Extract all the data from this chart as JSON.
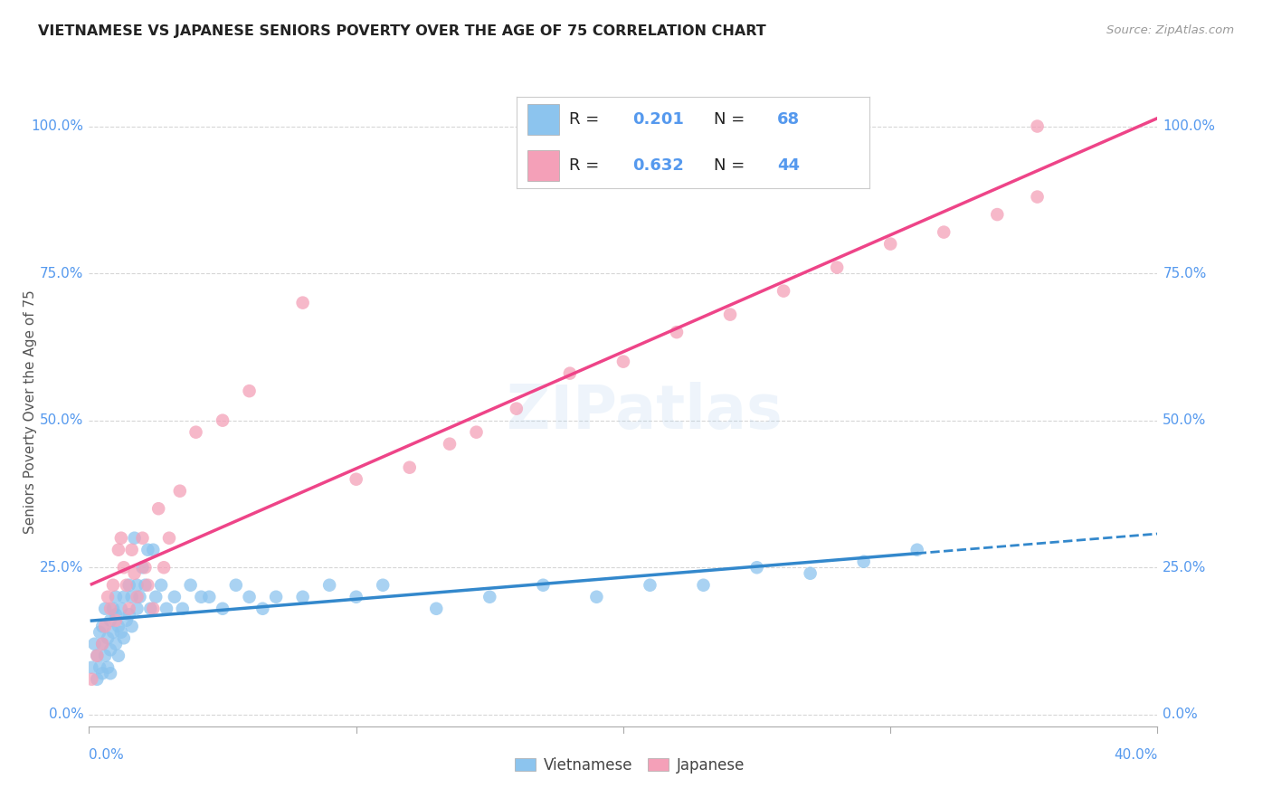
{
  "title": "VIETNAMESE VS JAPANESE SENIORS POVERTY OVER THE AGE OF 75 CORRELATION CHART",
  "source": "Source: ZipAtlas.com",
  "ylabel": "Seniors Poverty Over the Age of 75",
  "xlim": [
    0.0,
    0.4
  ],
  "ylim": [
    -0.02,
    1.05
  ],
  "plot_ylim": [
    0.0,
    1.0
  ],
  "yticks": [
    0.0,
    0.25,
    0.5,
    0.75,
    1.0
  ],
  "ytick_labels": [
    "0.0%",
    "25.0%",
    "50.0%",
    "75.0%",
    "100.0%"
  ],
  "xtick_left": "0.0%",
  "xtick_right": "40.0%",
  "legend_labels": [
    "Vietnamese",
    "Japanese"
  ],
  "r_vietnamese": 0.201,
  "n_vietnamese": 68,
  "r_japanese": 0.632,
  "n_japanese": 44,
  "color_vietnamese": "#8CC4EE",
  "color_japanese": "#F4A0B8",
  "color_trendline_vietnamese": "#3388CC",
  "color_trendline_japanese": "#EE4488",
  "color_axis": "#5599EE",
  "background_color": "#ffffff",
  "grid_color": "#cccccc",
  "watermark": "ZIPatlas",
  "viet_x": [
    0.001,
    0.002,
    0.003,
    0.003,
    0.004,
    0.004,
    0.005,
    0.005,
    0.005,
    0.006,
    0.006,
    0.007,
    0.007,
    0.008,
    0.008,
    0.008,
    0.009,
    0.009,
    0.01,
    0.01,
    0.01,
    0.011,
    0.011,
    0.012,
    0.012,
    0.013,
    0.013,
    0.014,
    0.015,
    0.015,
    0.016,
    0.016,
    0.017,
    0.018,
    0.018,
    0.019,
    0.02,
    0.021,
    0.022,
    0.023,
    0.024,
    0.025,
    0.027,
    0.029,
    0.032,
    0.035,
    0.038,
    0.042,
    0.045,
    0.05,
    0.055,
    0.06,
    0.065,
    0.07,
    0.08,
    0.09,
    0.1,
    0.11,
    0.13,
    0.15,
    0.17,
    0.19,
    0.21,
    0.23,
    0.25,
    0.27,
    0.29,
    0.31
  ],
  "viet_y": [
    0.08,
    0.12,
    0.1,
    0.06,
    0.14,
    0.08,
    0.12,
    0.07,
    0.15,
    0.1,
    0.18,
    0.13,
    0.08,
    0.16,
    0.11,
    0.07,
    0.18,
    0.14,
    0.17,
    0.12,
    0.2,
    0.15,
    0.1,
    0.18,
    0.14,
    0.2,
    0.13,
    0.16,
    0.22,
    0.17,
    0.2,
    0.15,
    0.3,
    0.22,
    0.18,
    0.2,
    0.25,
    0.22,
    0.28,
    0.18,
    0.28,
    0.2,
    0.22,
    0.18,
    0.2,
    0.18,
    0.22,
    0.2,
    0.2,
    0.18,
    0.22,
    0.2,
    0.18,
    0.2,
    0.2,
    0.22,
    0.2,
    0.22,
    0.18,
    0.2,
    0.22,
    0.2,
    0.22,
    0.22,
    0.25,
    0.24,
    0.26,
    0.28
  ],
  "jap_x": [
    0.001,
    0.003,
    0.005,
    0.006,
    0.007,
    0.008,
    0.009,
    0.01,
    0.011,
    0.012,
    0.013,
    0.014,
    0.015,
    0.016,
    0.017,
    0.018,
    0.02,
    0.021,
    0.022,
    0.024,
    0.026,
    0.028,
    0.03,
    0.034,
    0.04,
    0.05,
    0.06,
    0.08,
    0.1,
    0.12,
    0.135,
    0.145,
    0.16,
    0.18,
    0.2,
    0.22,
    0.24,
    0.26,
    0.28,
    0.3,
    0.32,
    0.34,
    0.355,
    0.355
  ],
  "jap_y": [
    0.06,
    0.1,
    0.12,
    0.15,
    0.2,
    0.18,
    0.22,
    0.16,
    0.28,
    0.3,
    0.25,
    0.22,
    0.18,
    0.28,
    0.24,
    0.2,
    0.3,
    0.25,
    0.22,
    0.18,
    0.35,
    0.25,
    0.3,
    0.38,
    0.48,
    0.5,
    0.55,
    0.7,
    0.4,
    0.42,
    0.46,
    0.48,
    0.52,
    0.58,
    0.6,
    0.65,
    0.68,
    0.72,
    0.76,
    0.8,
    0.82,
    0.85,
    0.88,
    1.0
  ]
}
